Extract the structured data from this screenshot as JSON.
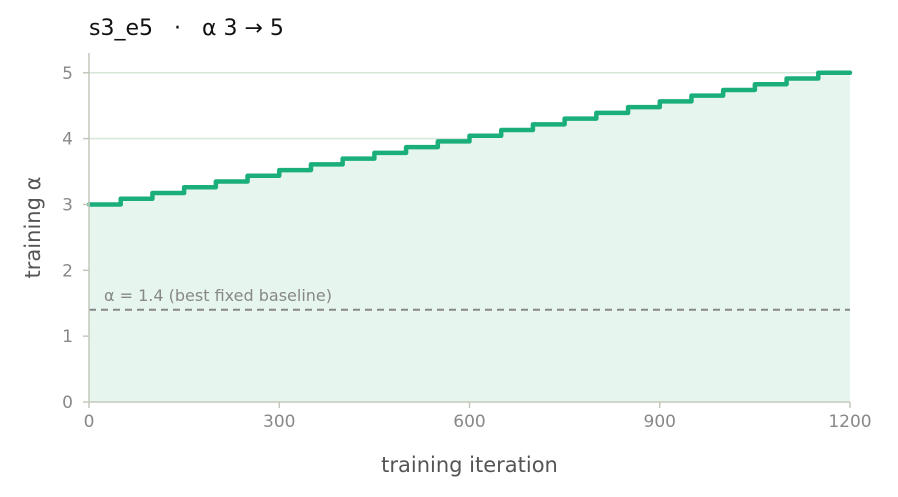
{
  "chart_data": {
    "type": "line",
    "title": "s3_e5   ·   α 3 → 5",
    "xlabel": "training iteration",
    "ylabel": "training α",
    "xlim": [
      0,
      1200
    ],
    "ylim": [
      0,
      5.3
    ],
    "xticks": [
      0,
      300,
      600,
      900,
      1200
    ],
    "xtick_labels": [
      "0",
      "300",
      "600",
      "900",
      "1200"
    ],
    "yticks": [
      0,
      1,
      2,
      3,
      4,
      5
    ],
    "ytick_labels": [
      "0",
      "1",
      "2",
      "3",
      "4",
      "5"
    ],
    "grid": "horizontal",
    "series": [
      {
        "style": "step",
        "color": "#1aaf7a",
        "fill": "#e6f5ee",
        "x": [
          0,
          50,
          100,
          150,
          200,
          250,
          300,
          350,
          400,
          450,
          500,
          550,
          600,
          650,
          700,
          750,
          800,
          850,
          900,
          950,
          1000,
          1050,
          1100,
          1150,
          1200
        ],
        "y": [
          3.0,
          3.087,
          3.174,
          3.261,
          3.348,
          3.435,
          3.522,
          3.609,
          3.696,
          3.783,
          3.87,
          3.957,
          4.043,
          4.13,
          4.217,
          4.304,
          4.391,
          4.478,
          4.565,
          4.652,
          4.739,
          4.826,
          4.913,
          5.0,
          5.0
        ]
      }
    ],
    "reference_line": {
      "y": 1.4,
      "label": "α = 1.4 (best fixed baseline)",
      "color": "#888888",
      "style": "dashed"
    }
  }
}
